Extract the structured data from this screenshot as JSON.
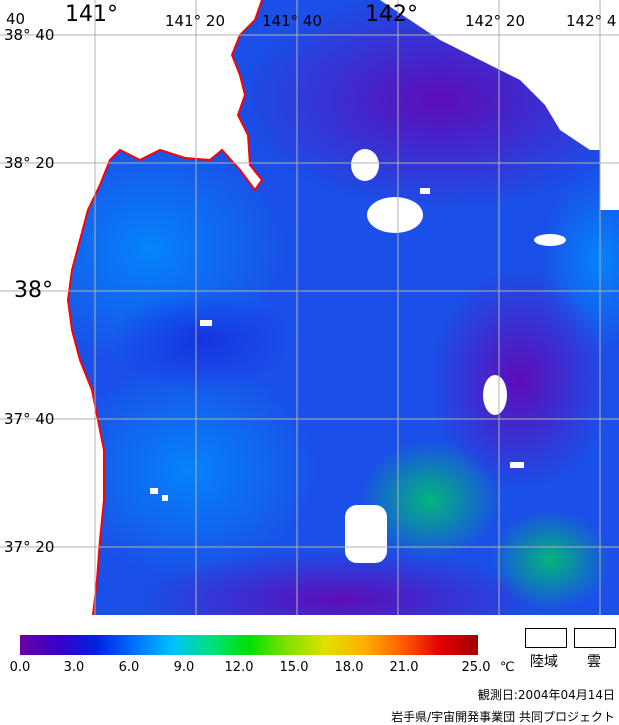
{
  "map": {
    "lon_labels": [
      {
        "id": "lon-141",
        "text": "141°",
        "style": "big"
      },
      {
        "id": "lon-141-20",
        "text": "141° 20",
        "style": "small"
      },
      {
        "id": "lon-141-40",
        "text": "141° 40",
        "style": "small"
      },
      {
        "id": "lon-142",
        "text": "142°",
        "style": "big"
      },
      {
        "id": "lon-142-20",
        "text": "142° 20",
        "style": "small"
      },
      {
        "id": "lon-142-40",
        "text": "142° 4",
        "style": "small"
      }
    ],
    "lat_labels": [
      {
        "id": "lat-38-40",
        "text": "38° 40",
        "style": "small"
      },
      {
        "id": "lat-38-20",
        "text": "38° 20",
        "style": "small"
      },
      {
        "id": "lat-38",
        "text": "38°",
        "style": "big"
      },
      {
        "id": "lat-37-40",
        "text": "37° 40",
        "style": "small"
      },
      {
        "id": "lat-37-20",
        "text": "37° 20",
        "style": "small"
      }
    ],
    "corner_label": "40",
    "coast_color": "#ff0000",
    "land_color": "#ffffff",
    "cloud_color": "#ffffff"
  },
  "colorbar": {
    "ticks": [
      "0.0",
      "3.0",
      "6.0",
      "9.0",
      "12.0",
      "15.0",
      "18.0",
      "21.0",
      "25.0"
    ],
    "unit": "℃",
    "colors": [
      "#6a00a8",
      "#3a00c8",
      "#0022e0",
      "#0070ff",
      "#00c0ff",
      "#00e080",
      "#00e000",
      "#80e000",
      "#e0e000",
      "#ffb000",
      "#ff6000",
      "#e00000",
      "#a00000"
    ]
  },
  "legend": {
    "land": "陸域",
    "cloud": "雲"
  },
  "footer": {
    "observation_date": "観測日:2004年04月14日",
    "credits": "岩手県/宇宙開発事業団 共同プロジェクト"
  }
}
